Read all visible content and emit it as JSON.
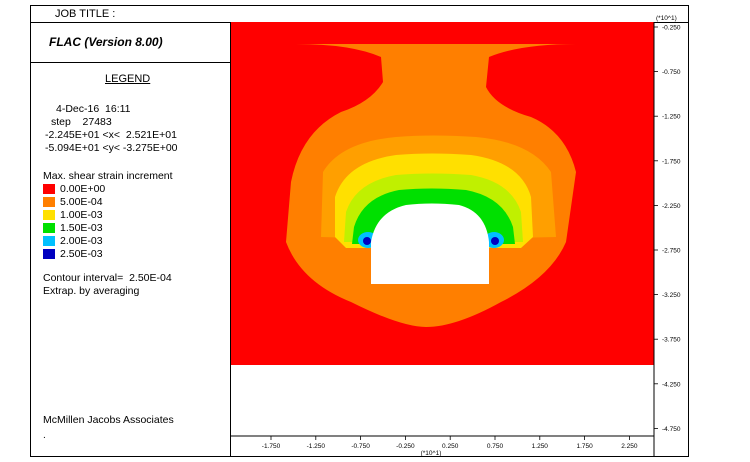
{
  "header": {
    "job_title_label": "JOB TITLE :"
  },
  "app": {
    "name": "FLAC (Version 8.00)"
  },
  "legend": {
    "title": "LEGEND",
    "date_time": "4-Dec-16  16:11",
    "step": "step    27483",
    "x_range": "-2.245E+01 <x<  2.521E+01",
    "y_range": "-5.094E+01 <y< -3.275E+00",
    "variable": "Max. shear strain increment",
    "levels": [
      {
        "label": "0.00E+00",
        "color": "#ff0000"
      },
      {
        "label": "5.00E-04",
        "color": "#ff7f00"
      },
      {
        "label": "1.00E-03",
        "color": "#ffe000"
      },
      {
        "label": "1.50E-03",
        "color": "#00e000"
      },
      {
        "label": "2.00E-03",
        "color": "#00c0ff"
      },
      {
        "label": "2.50E-03",
        "color": "#0000c0"
      }
    ],
    "contour_interval": "Contour interval=  2.50E-04",
    "extrapolation": "Extrap. by averaging",
    "company": "McMillen Jacobs Associates",
    "footer_mark": "."
  },
  "axes": {
    "y_multiplier": "(*10^1)",
    "y_ticks": [
      "-0.250",
      "-0.750",
      "-1.250",
      "-1.750",
      "-2.250",
      "-2.750",
      "-3.250",
      "-3.750",
      "-4.250",
      "-4.750"
    ],
    "x_multiplier": "(*10^1)",
    "x_ticks": [
      "-1.750",
      "-1.250",
      "-0.750",
      "-0.250",
      "0.250",
      "0.750",
      "1.250",
      "1.750",
      "2.250"
    ]
  },
  "colors": {
    "background": "#ff0000",
    "orange": "#ff7f00",
    "light_orange": "#ff9f00",
    "yellow": "#ffe000",
    "yellow_green": "#c0f000",
    "green": "#00e000",
    "cyan": "#00c0ff",
    "blue": "#0000c0",
    "excavation": "#ffffff"
  }
}
